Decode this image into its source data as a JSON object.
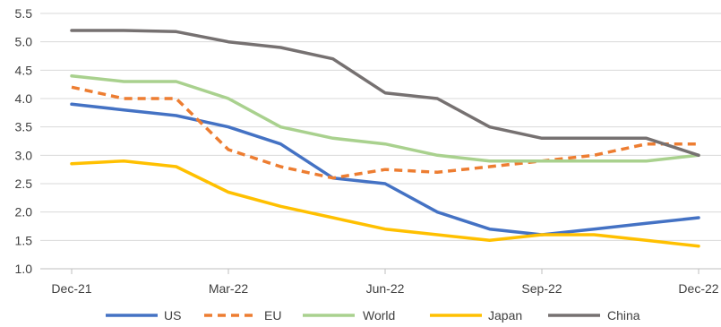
{
  "chart_data": {
    "type": "line",
    "title": "",
    "xlabel": "",
    "ylabel": "",
    "ylim": [
      1.0,
      5.5
    ],
    "yticks": [
      "5.5",
      "5.0",
      "4.5",
      "4.0",
      "3.5",
      "3.0",
      "2.5",
      "2.0",
      "1.5",
      "1.0"
    ],
    "x": [
      "Dec-21",
      "Jan-22",
      "Feb-22",
      "Mar-22",
      "Apr-22",
      "May-22",
      "Jun-22",
      "Jul-22",
      "Aug-22",
      "Sep-22",
      "Oct-22",
      "Nov-22",
      "Dec-22"
    ],
    "x_tick_labels": [
      "Dec-21",
      "Mar-22",
      "Jun-22",
      "Sep-22",
      "Dec-22"
    ],
    "grid": "horizontal",
    "legend_position": "bottom",
    "series": [
      {
        "name": "US",
        "color": "#4472C4",
        "dash": "solid",
        "values": [
          3.9,
          3.8,
          3.7,
          3.5,
          3.2,
          2.6,
          2.5,
          2.0,
          1.7,
          1.6,
          1.7,
          1.8,
          1.9
        ]
      },
      {
        "name": "EU",
        "color": "#ED7D31",
        "dash": "dashed",
        "values": [
          4.2,
          4.0,
          4.0,
          3.1,
          2.8,
          2.6,
          2.75,
          2.7,
          2.8,
          2.9,
          3.0,
          3.2,
          3.2
        ]
      },
      {
        "name": "World",
        "color": "#A9D18E",
        "dash": "solid",
        "values": [
          4.4,
          4.3,
          4.3,
          4.0,
          3.5,
          3.3,
          3.2,
          3.0,
          2.9,
          2.9,
          2.9,
          2.9,
          3.0
        ]
      },
      {
        "name": "Japan",
        "color": "#FFC000",
        "dash": "solid",
        "values": [
          2.85,
          2.9,
          2.8,
          2.35,
          2.1,
          1.9,
          1.7,
          1.6,
          1.5,
          1.6,
          1.6,
          1.5,
          1.4
        ]
      },
      {
        "name": "China",
        "color": "#767171",
        "dash": "solid",
        "values": [
          5.2,
          5.2,
          5.18,
          5.0,
          4.9,
          4.7,
          4.1,
          4.0,
          3.5,
          3.3,
          3.3,
          3.3,
          3.0
        ]
      }
    ]
  }
}
